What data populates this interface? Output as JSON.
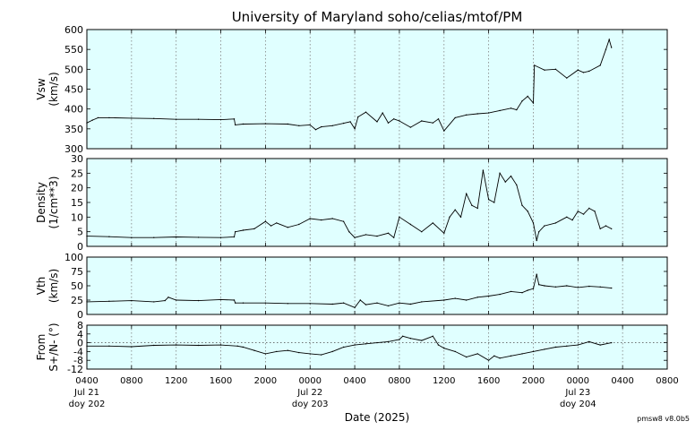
{
  "title": "University of Maryland  soho/celias/mtof/PM",
  "xlabel": "Date (2025)",
  "version_label": "pmsw8 v8.0b5",
  "colors": {
    "panel_bg": "#e0ffff",
    "line": "#000000",
    "grid": "#808080",
    "page_bg": "#ffffff"
  },
  "x_ticks": [
    {
      "t": 0,
      "l1": "0400",
      "l2": "Jul 21",
      "l3": "doy 202"
    },
    {
      "t": 4,
      "l1": "0800",
      "l2": "",
      "l3": ""
    },
    {
      "t": 8,
      "l1": "1200",
      "l2": "",
      "l3": ""
    },
    {
      "t": 12,
      "l1": "1600",
      "l2": "",
      "l3": ""
    },
    {
      "t": 16,
      "l1": "2000",
      "l2": "",
      "l3": ""
    },
    {
      "t": 20,
      "l1": "0000",
      "l2": "Jul 22",
      "l3": "doy 203"
    },
    {
      "t": 24,
      "l1": "0400",
      "l2": "",
      "l3": ""
    },
    {
      "t": 28,
      "l1": "0800",
      "l2": "",
      "l3": ""
    },
    {
      "t": 32,
      "l1": "1200",
      "l2": "",
      "l3": ""
    },
    {
      "t": 36,
      "l1": "1600",
      "l2": "",
      "l3": ""
    },
    {
      "t": 40,
      "l1": "2000",
      "l2": "",
      "l3": ""
    },
    {
      "t": 44,
      "l1": "0000",
      "l2": "Jul 23",
      "l3": "doy 204"
    },
    {
      "t": 48,
      "l1": "0400",
      "l2": "",
      "l3": ""
    },
    {
      "t": 52,
      "l1": "0800",
      "l2": "",
      "l3": ""
    }
  ],
  "chart_data": {
    "type": "line",
    "x_range_hours_after_jul21_0400": [
      0,
      52
    ],
    "grid": "dotted vertical lines at each x tick",
    "panels": [
      {
        "key": "vsw",
        "ylabel1": "Vsw",
        "ylabel2": "(km/s)",
        "ylim": [
          300,
          600
        ],
        "yticks": [
          300,
          350,
          400,
          450,
          500,
          550,
          600
        ],
        "series": {
          "x": [
            0,
            0.5,
            1,
            2,
            4,
            6,
            8,
            10,
            12,
            13.2,
            13.3,
            14,
            16,
            18,
            19,
            20,
            20.5,
            21,
            22,
            23,
            23.6,
            24,
            24.3,
            25,
            26,
            26.5,
            27,
            27.5,
            28,
            29,
            30,
            31,
            31.5,
            32,
            33,
            34,
            35,
            36,
            37,
            38,
            38.5,
            39,
            39.5,
            40,
            40.1,
            41,
            42,
            43,
            44,
            44.5,
            45,
            46,
            46.5,
            46.8,
            47
          ],
          "y": [
            365,
            372,
            378,
            378,
            377,
            376,
            374,
            374,
            373,
            375,
            360,
            362,
            363,
            362,
            358,
            360,
            348,
            355,
            358,
            364,
            368,
            350,
            380,
            392,
            368,
            390,
            365,
            375,
            370,
            354,
            370,
            365,
            375,
            345,
            378,
            385,
            388,
            390,
            396,
            402,
            398,
            420,
            432,
            415,
            510,
            498,
            500,
            478,
            498,
            492,
            495,
            510,
            550,
            575,
            555
          ]
        },
        "reference_line": null
      },
      {
        "key": "density",
        "ylabel1": "Density",
        "ylabel2": "(1/cm**3)",
        "ylim": [
          0,
          30
        ],
        "yticks": [
          0,
          5,
          10,
          15,
          20,
          25,
          30
        ],
        "series": {
          "x": [
            0,
            2,
            4,
            6,
            8,
            10,
            12,
            13.2,
            13.3,
            14,
            15,
            16,
            16.5,
            17,
            18,
            19,
            20,
            21,
            22,
            23,
            23.5,
            24,
            25,
            26,
            27,
            27.5,
            28,
            29,
            30,
            31,
            32,
            32.5,
            33,
            33.5,
            34,
            34.5,
            35,
            35.5,
            36,
            36.5,
            37,
            37.5,
            38,
            38.5,
            39,
            39.5,
            40,
            40.3,
            40.5,
            41,
            42,
            43,
            43.5,
            44,
            44.5,
            45,
            45.5,
            46,
            46.5,
            47
          ],
          "y": [
            3.5,
            3.3,
            3.0,
            3.0,
            3.2,
            3.1,
            3.0,
            3.2,
            5.0,
            5.5,
            6.0,
            8.5,
            7.0,
            8.0,
            6.5,
            7.5,
            9.5,
            9.0,
            9.5,
            8.5,
            5.0,
            3.0,
            4.0,
            3.5,
            4.5,
            3.0,
            10.0,
            7.5,
            5.0,
            8.0,
            4.5,
            10.0,
            12.5,
            10.0,
            18.0,
            14.0,
            13.0,
            26.0,
            16.0,
            15.0,
            25.0,
            22.0,
            24.0,
            21.0,
            14.0,
            12.0,
            8.0,
            2.0,
            5.0,
            7.0,
            8.0,
            10.0,
            9.0,
            12.0,
            11.0,
            13.0,
            12.0,
            6.0,
            7.0,
            6.0
          ]
        },
        "reference_line": null
      },
      {
        "key": "vth",
        "ylabel1": "Vth",
        "ylabel2": "(km/s)",
        "ylim": [
          0,
          100
        ],
        "yticks": [
          0,
          25,
          50,
          75,
          100
        ],
        "series": {
          "x": [
            0,
            2,
            4,
            6,
            7,
            7.3,
            8,
            10,
            12,
            13.2,
            13.3,
            14,
            16,
            18,
            20,
            22,
            23,
            24,
            24.5,
            25,
            26,
            27,
            28,
            29,
            30,
            32,
            33,
            34,
            35,
            36,
            37,
            38,
            39,
            39.5,
            40,
            40.3,
            40.5,
            41,
            42,
            43,
            44,
            45,
            46,
            47
          ],
          "y": [
            22,
            23,
            24,
            22,
            24,
            30,
            25,
            24,
            26,
            25,
            20,
            20,
            20,
            19,
            19,
            18,
            20,
            12,
            25,
            17,
            20,
            15,
            20,
            18,
            22,
            25,
            28,
            25,
            30,
            32,
            35,
            40,
            38,
            42,
            45,
            70,
            52,
            50,
            48,
            50,
            47,
            49,
            48,
            46
          ]
        },
        "reference_line": null
      },
      {
        "key": "from",
        "ylabel1": "From",
        "ylabel2": "S+/N- (°)",
        "ylim": [
          -12,
          8
        ],
        "yticks": [
          -12,
          -8,
          -4,
          0,
          4,
          8
        ],
        "series": {
          "x": [
            0,
            2,
            4,
            6,
            8,
            10,
            12,
            13.5,
            14,
            15,
            16,
            17,
            18,
            19,
            20,
            21,
            22,
            23,
            24,
            25,
            26,
            27,
            28,
            28.3,
            29,
            30,
            31,
            31.5,
            32,
            33,
            34,
            35,
            36,
            36.5,
            37,
            38,
            39,
            40,
            41,
            42,
            43,
            44,
            45,
            46,
            47
          ],
          "y": [
            -1.5,
            -1.5,
            -1.8,
            -1.2,
            -1.0,
            -1.2,
            -1.0,
            -1.5,
            -2.0,
            -3.5,
            -5.0,
            -4.0,
            -3.5,
            -4.5,
            -5.0,
            -5.5,
            -4.0,
            -2.0,
            -1.0,
            -0.5,
            0.0,
            0.5,
            1.5,
            3.0,
            2.0,
            1.0,
            3.0,
            -1.0,
            -2.5,
            -4.0,
            -6.5,
            -5.0,
            -8.0,
            -6.0,
            -7.0,
            -6.0,
            -5.0,
            -4.0,
            -3.0,
            -2.0,
            -1.5,
            -1.0,
            0.5,
            -1.0,
            0.0
          ]
        },
        "reference_line": 0
      }
    ]
  }
}
